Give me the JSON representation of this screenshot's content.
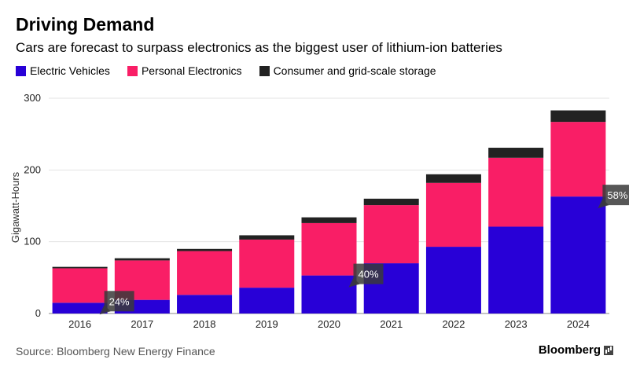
{
  "header": {
    "title": "Driving Demand",
    "subtitle": "Cars are forecast to surpass electronics as the biggest user of lithium-ion batteries"
  },
  "legend": [
    {
      "label": "Electric Vehicles",
      "color": "#2800d7"
    },
    {
      "label": "Personal Electronics",
      "color": "#f91e66"
    },
    {
      "label": "Consumer and grid-scale storage",
      "color": "#222222"
    }
  ],
  "footer": {
    "source": "Source: Bloomberg New Energy Finance",
    "brand": "Bloomberg"
  },
  "chart_data": {
    "type": "bar",
    "stacked": true,
    "categories": [
      "2016",
      "2017",
      "2018",
      "2019",
      "2020",
      "2021",
      "2022",
      "2023",
      "2024"
    ],
    "series": [
      {
        "name": "Electric Vehicles",
        "color": "#2800d7",
        "values": [
          15,
          19,
          26,
          36,
          53,
          70,
          93,
          121,
          163
        ]
      },
      {
        "name": "Personal Electronics",
        "color": "#f91e66",
        "values": [
          48,
          55,
          61,
          67,
          73,
          81,
          89,
          96,
          104
        ]
      },
      {
        "name": "Consumer and grid-scale storage",
        "color": "#222222",
        "values": [
          2,
          3,
          3,
          6,
          8,
          9,
          12,
          14,
          16
        ]
      }
    ],
    "ylabel": "Gigawatt-Hours",
    "xlabel": "",
    "ylim": [
      0,
      300
    ],
    "yticks": [
      0,
      100,
      200,
      300
    ],
    "grid": true,
    "annotations": [
      {
        "category": "2016",
        "text": "24%"
      },
      {
        "category": "2020",
        "text": "40%"
      },
      {
        "category": "2024",
        "text": "58%"
      }
    ]
  }
}
